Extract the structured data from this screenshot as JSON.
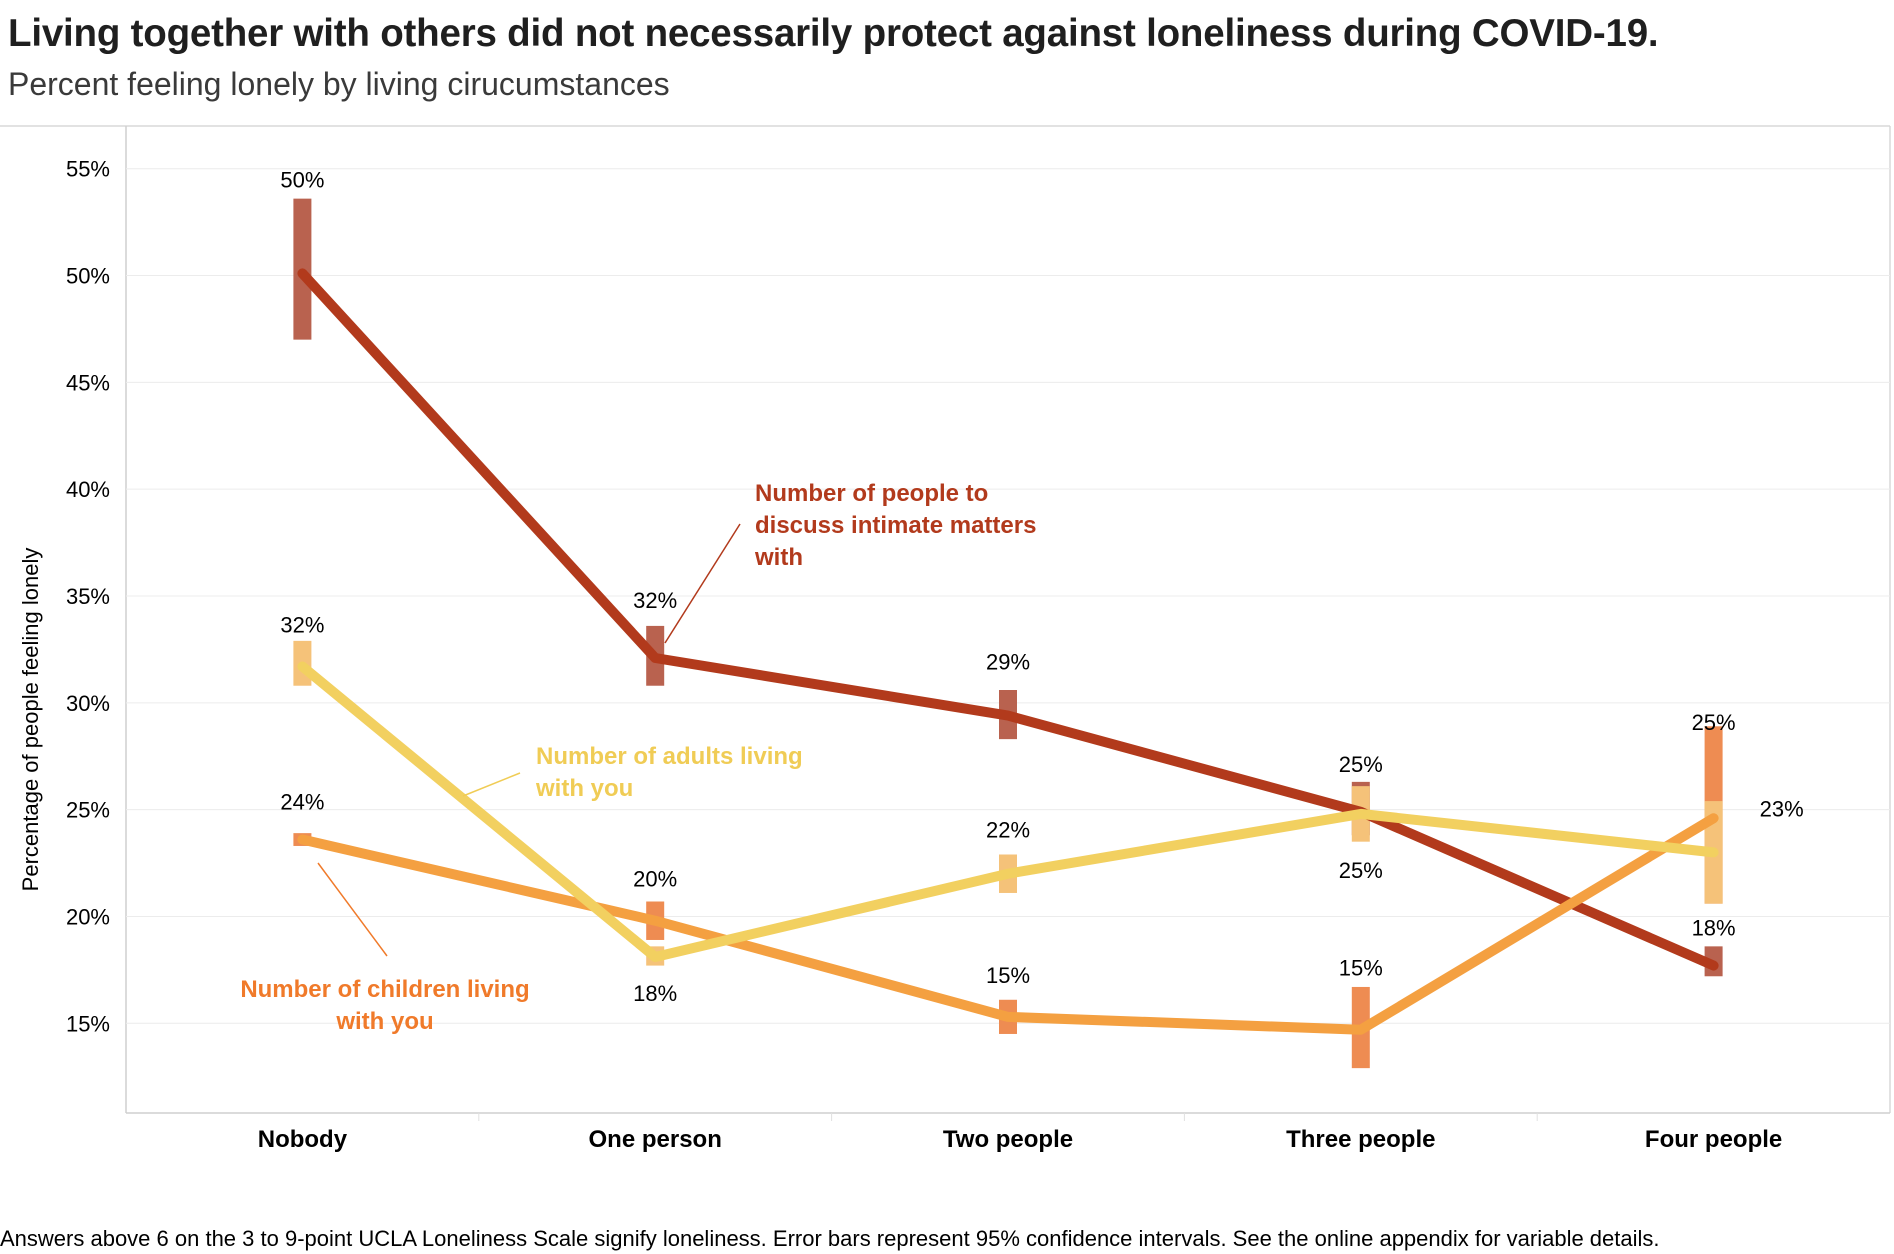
{
  "title": "Living together with others did not necessarily protect against loneliness during COVID-19.",
  "subtitle": "Percent feeling lonely by living cirucumstances",
  "footnote": "Answers above 6 on the 3 to 9-point UCLA Loneliness Scale signify loneliness. Error bars represent 95% confidence intervals. See the online appendix for variable details.",
  "chart_data": {
    "type": "line",
    "title": "Living together with others did not necessarily protect against loneliness during COVID-19.",
    "subtitle": "Percent feeling lonely by living cirucumstances",
    "ylabel": "Percentage of people feeling lonely",
    "xlabel": "",
    "categories": [
      "Nobody",
      "One person",
      "Two people",
      "Three people",
      "Four people"
    ],
    "yticks": [
      "15%",
      "20%",
      "25%",
      "30%",
      "35%",
      "40%",
      "45%",
      "50%",
      "55%"
    ],
    "ylim": [
      10.8,
      57
    ],
    "grid": true,
    "legend": "none (direct labels)",
    "series": [
      {
        "name": "Number of people to discuss intimate matters with",
        "label_lines": [
          "Number of people to",
          "discuss intimate matters",
          "with"
        ],
        "color": "#b23a1c",
        "bar_color": "#b9624f",
        "values": [
          50.1,
          32.1,
          29.4,
          24.9,
          17.7
        ],
        "ci_low": [
          47.0,
          30.8,
          28.3,
          23.8,
          17.2
        ],
        "ci_high": [
          53.6,
          33.6,
          30.6,
          26.3,
          18.6
        ],
        "labels": [
          "50%",
          "32%",
          "29%",
          "25%",
          "18%"
        ]
      },
      {
        "name": "Number of adults living with you",
        "label_lines": [
          "Number of adults living",
          "with you"
        ],
        "color": "#f2d060",
        "bar_color": "#f5c279",
        "values": [
          31.7,
          18.1,
          22.0,
          24.8,
          23.0
        ],
        "ci_low": [
          30.8,
          17.7,
          21.1,
          23.5,
          20.6
        ],
        "ci_high": [
          32.9,
          18.6,
          22.9,
          26.1,
          25.4
        ],
        "labels": [
          "32%",
          "18%",
          "22%",
          "25%",
          "23%"
        ]
      },
      {
        "name": "Number of children living with you",
        "label_lines": [
          "Number of children living",
          "with you"
        ],
        "color": "#f4a041",
        "bar_color": "#ee8c52",
        "values": [
          23.6,
          19.8,
          15.3,
          14.7,
          24.6
        ],
        "ci_low": [
          23.3,
          18.9,
          14.5,
          12.9,
          20.6
        ],
        "ci_high": [
          23.9,
          20.7,
          16.1,
          16.7,
          28.9
        ],
        "labels": [
          "24%",
          "20%",
          "15%",
          "15%",
          "25%"
        ]
      }
    ]
  }
}
